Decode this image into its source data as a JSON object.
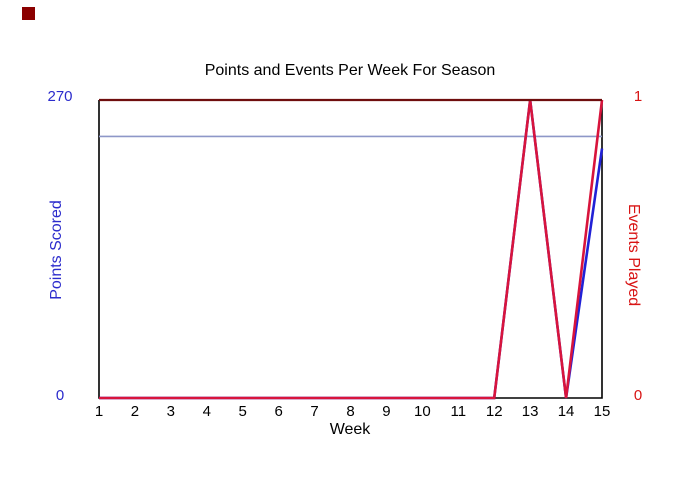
{
  "corner_marker": {
    "color": "#8b0000"
  },
  "chart_data": {
    "type": "line",
    "title": "Points and Events Per Week For Season",
    "xlabel": "Week",
    "x": [
      1,
      2,
      3,
      4,
      5,
      6,
      7,
      8,
      9,
      10,
      11,
      12,
      13,
      14,
      15
    ],
    "x_ticks": [
      "1",
      "2",
      "3",
      "4",
      "5",
      "6",
      "7",
      "8",
      "9",
      "10",
      "11",
      "12",
      "13",
      "14",
      "15"
    ],
    "series": [
      {
        "name": "Points Scored",
        "axis": "left",
        "color": "#2121d6",
        "values": [
          0,
          0,
          0,
          0,
          0,
          0,
          0,
          0,
          0,
          0,
          0,
          0,
          270,
          0,
          226
        ]
      },
      {
        "name": "Events Played",
        "axis": "right",
        "color": "#d8143c",
        "values": [
          0,
          0,
          0,
          0,
          0,
          0,
          0,
          0,
          0,
          0,
          0,
          0,
          1,
          0,
          1
        ]
      }
    ],
    "reference_line": {
      "axis": "left",
      "value": 237,
      "color": "#8e97c8"
    },
    "left_axis": {
      "label": "Points Scored",
      "color": "#2b2bcc",
      "range": [
        0,
        270
      ],
      "ticks": [
        "270",
        "0"
      ]
    },
    "right_axis": {
      "label": "Events Played",
      "color": "#d81414",
      "range": [
        0,
        1
      ],
      "ticks": [
        "1",
        "0"
      ]
    },
    "frame": {
      "top_color": "#6f0d0d",
      "side_color": "#000000"
    },
    "grid": "off",
    "legend": "none",
    "background": "#ffffff"
  }
}
